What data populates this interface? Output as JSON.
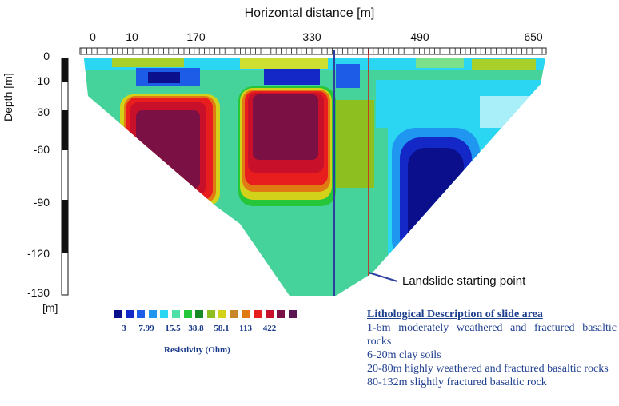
{
  "title": "Horizontal distance [m]",
  "x_ticks": [
    "0",
    "10",
    "170",
    "330",
    "490",
    "650"
  ],
  "y_axis_title": "Depth [m]",
  "y_ticks": [
    "0",
    "-10",
    "-30",
    "-60",
    "-90",
    "-120",
    "-130"
  ],
  "unit_label": "[m]",
  "annotation": "Landslide starting point",
  "legend": {
    "title": "Resistivity (Ohm)",
    "values": [
      "3",
      "7.99",
      "15.5",
      "38.8",
      "58.1",
      "113",
      "422"
    ],
    "colors": [
      "#0b0f8c",
      "#1428c8",
      "#1c5ce6",
      "#1f96f0",
      "#2ad6f2",
      "#4ee0a6",
      "#25c63a",
      "#158a24",
      "#8cbf1f",
      "#d2d21b",
      "#c9852a",
      "#e07a12",
      "#e81d1d",
      "#c8102a",
      "#7a1043",
      "#5c1650"
    ]
  },
  "lithology": {
    "heading": "Lithological Description of slide area",
    "items": [
      "1-6m moderately weathered and fractured basaltic rocks",
      "6-20m clay soils",
      "20-80m highly weathered and fractured basaltic rocks",
      "80-132m slightly fractured basaltic rock"
    ]
  }
}
